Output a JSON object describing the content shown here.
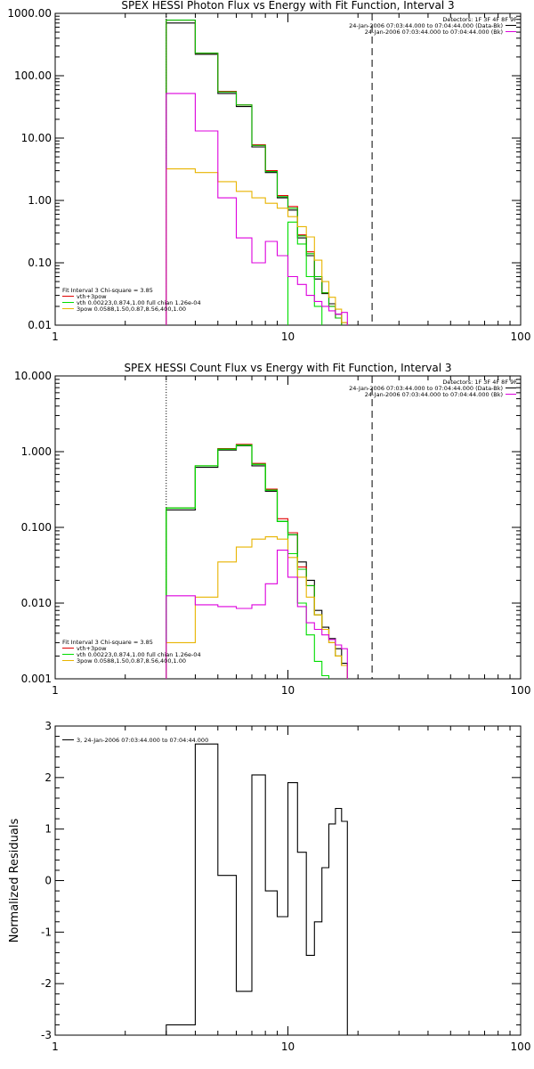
{
  "chart_data": [
    {
      "type": "line",
      "title": "SPEX HESSI Photon Flux vs Energy with Fit Function, Interval 3",
      "xlabel": "",
      "ylabel": "",
      "x_scale": "log",
      "y_scale": "log",
      "xlim": [
        1,
        100
      ],
      "ylim": [
        0.01,
        1000
      ],
      "x_ticks": [
        "1",
        "10",
        "100"
      ],
      "y_ticks": [
        "0.01",
        "0.10",
        "1.00",
        "10.00",
        "100.00",
        "1000.00"
      ],
      "fit_range_low": 3,
      "fit_range_high": 23,
      "header_lines": [
        "Detectors: 1F 3F 4F 8F 9F",
        "24-Jan-2006 07:03:44.000 to 07:04:44.000 (Data-Bk)",
        "24-Jan-2006 07:03:44.000 to 07:04:44.000 (Bk)"
      ],
      "legend_lines": [
        "Fit Interval 3   Chi-square = 3.85",
        "vth+3pow",
        "vth 0.00223,0.874,1.00  full chian 1.26e-04",
        "3pow 0.0588,1.50,0.87,8.56,400,1.00"
      ],
      "bin_edges": [
        3,
        4,
        5,
        6,
        7,
        8,
        9,
        10,
        11,
        12,
        13,
        14,
        15,
        16,
        17,
        18,
        19,
        20,
        21,
        22.5
      ],
      "series": [
        {
          "color": "#000000",
          "values": [
            700,
            220,
            52,
            32,
            7.2,
            2.8,
            1.1,
            0.7,
            0.25,
            0.13,
            0.055,
            0.032,
            0.022,
            0.015,
            0.011
          ]
        },
        {
          "name": "Data-Bk",
          "color": "#e00000",
          "values": [
            780,
            230,
            56,
            34,
            7.8,
            3.0,
            1.2,
            0.8,
            0.28,
            0.15,
            0.06,
            0.033,
            0.02,
            0.013,
            0.009
          ]
        },
        {
          "name": "vth+3pow",
          "color": "#00c000",
          "values": [
            780,
            230,
            55,
            34,
            7.6,
            2.9,
            1.15,
            0.75,
            0.27,
            0.14,
            0.06,
            0.033,
            0.02,
            0.013,
            0.009
          ]
        },
        {
          "name": "vth",
          "color": "#00dd00",
          "values": [
            null,
            null,
            null,
            null,
            null,
            null,
            null,
            0.45,
            0.2,
            0.06,
            0.02,
            0.009
          ]
        },
        {
          "name": "3pow",
          "color": "#e8b400",
          "values": [
            3.2,
            2.8,
            2.0,
            1.4,
            1.1,
            0.9,
            0.75,
            0.55,
            0.38,
            0.26,
            0.11,
            0.05,
            0.028,
            0.018,
            0.011,
            0.008
          ]
        },
        {
          "name": "Bk",
          "color": "#dd00dd",
          "values": [
            52,
            13,
            1.1,
            0.25,
            0.1,
            0.22,
            0.13,
            0.06,
            0.045,
            0.03,
            0.024,
            0.02,
            0.017,
            0.015,
            0.016
          ]
        }
      ]
    },
    {
      "type": "line",
      "title": "SPEX HESSI Count Flux vs Energy with Fit Function, Interval 3",
      "xlabel": "",
      "ylabel": "",
      "x_scale": "log",
      "y_scale": "log",
      "xlim": [
        1,
        100
      ],
      "ylim": [
        0.001,
        10
      ],
      "x_ticks": [
        "1",
        "10",
        "100"
      ],
      "y_ticks": [
        "0.001",
        "0.010",
        "0.100",
        "1.000",
        "10.000"
      ],
      "fit_range_low": 3,
      "fit_range_high": 23,
      "header_lines": [
        "Detectors: 1F 3F 4F 8F 9F",
        "24-Jan-2006 07:03:44.000 to 07:04:44.000 (Data-Bk)",
        "24-Jan-2006 07:03:44.000 to 07:04:44.000 (Bk)"
      ],
      "legend_lines": [
        "Fit Interval 3   Chi-square = 3.85",
        "vth+3pow",
        "vth 0.00223,0.874,1.00  full chian 1.26e-04",
        "3pow 0.0588,1.50,0.87,8.56,400,1.00"
      ],
      "bin_edges": [
        3,
        4,
        5,
        6,
        7,
        8,
        9,
        10,
        11,
        12,
        13,
        14,
        15,
        16,
        17,
        18,
        19,
        20,
        21,
        22.5
      ],
      "series": [
        {
          "color": "#000000",
          "values": [
            0.17,
            0.62,
            1.05,
            1.2,
            0.65,
            0.3,
            0.12,
            0.08,
            0.035,
            0.02,
            0.008,
            0.0048,
            0.0034,
            0.0025,
            0.0016
          ]
        },
        {
          "name": "Data-Bk",
          "color": "#e00000",
          "values": [
            0.18,
            0.65,
            1.1,
            1.25,
            0.7,
            0.32,
            0.13,
            0.085,
            0.03,
            0.017,
            0.007,
            0.0045,
            0.003,
            0.002,
            0.0015
          ]
        },
        {
          "name": "vth+3pow",
          "color": "#00c000",
          "values": [
            0.18,
            0.65,
            1.08,
            1.22,
            0.68,
            0.31,
            0.12,
            0.08,
            0.028,
            0.017,
            0.007,
            0.0045,
            0.003,
            0.002,
            0.0015
          ]
        },
        {
          "name": "vth",
          "color": "#00dd00",
          "values": [
            0.18,
            0.65,
            1.08,
            1.22,
            0.68,
            0.31,
            0.12,
            0.045,
            0.01,
            0.0038,
            0.0017,
            0.0011
          ]
        },
        {
          "name": "3pow",
          "color": "#e8b400",
          "values": [
            0.003,
            0.012,
            0.035,
            0.055,
            0.07,
            0.075,
            0.07,
            0.04,
            0.022,
            0.012,
            0.007,
            0.0045,
            0.003,
            0.002,
            0.0015
          ]
        },
        {
          "name": "Bk",
          "color": "#dd00dd",
          "values": [
            0.0125,
            0.0095,
            0.009,
            0.0085,
            0.0095,
            0.018,
            0.05,
            0.022,
            0.009,
            0.0055,
            0.0045,
            0.0038,
            0.0033,
            0.0028,
            0.0025
          ]
        }
      ]
    },
    {
      "type": "line",
      "title": "",
      "xlabel": "",
      "ylabel": "Normalized Residuals",
      "x_scale": "log",
      "y_scale": "linear",
      "xlim": [
        1,
        100
      ],
      "ylim": [
        -3,
        3
      ],
      "x_ticks": [
        "1",
        "10",
        "100"
      ],
      "y_ticks": [
        "-3",
        "-2",
        "-1",
        "0",
        "1",
        "2",
        "3"
      ],
      "legend_lines": [
        "3, 24-Jan-2006 07:03:44.000 to 07:04:44.000"
      ],
      "bin_edges": [
        3,
        4,
        5,
        6,
        7,
        8,
        9,
        10,
        11,
        12,
        13,
        14,
        15,
        16,
        17,
        18,
        19,
        20,
        21,
        22.5
      ],
      "series": [
        {
          "color": "#000000",
          "values": [
            -2.8,
            2.65,
            0.1,
            -2.15,
            2.05,
            -0.2,
            -0.7,
            1.9,
            0.55,
            -1.45,
            -0.8,
            0.25,
            1.1,
            1.4,
            1.15
          ]
        }
      ]
    }
  ]
}
